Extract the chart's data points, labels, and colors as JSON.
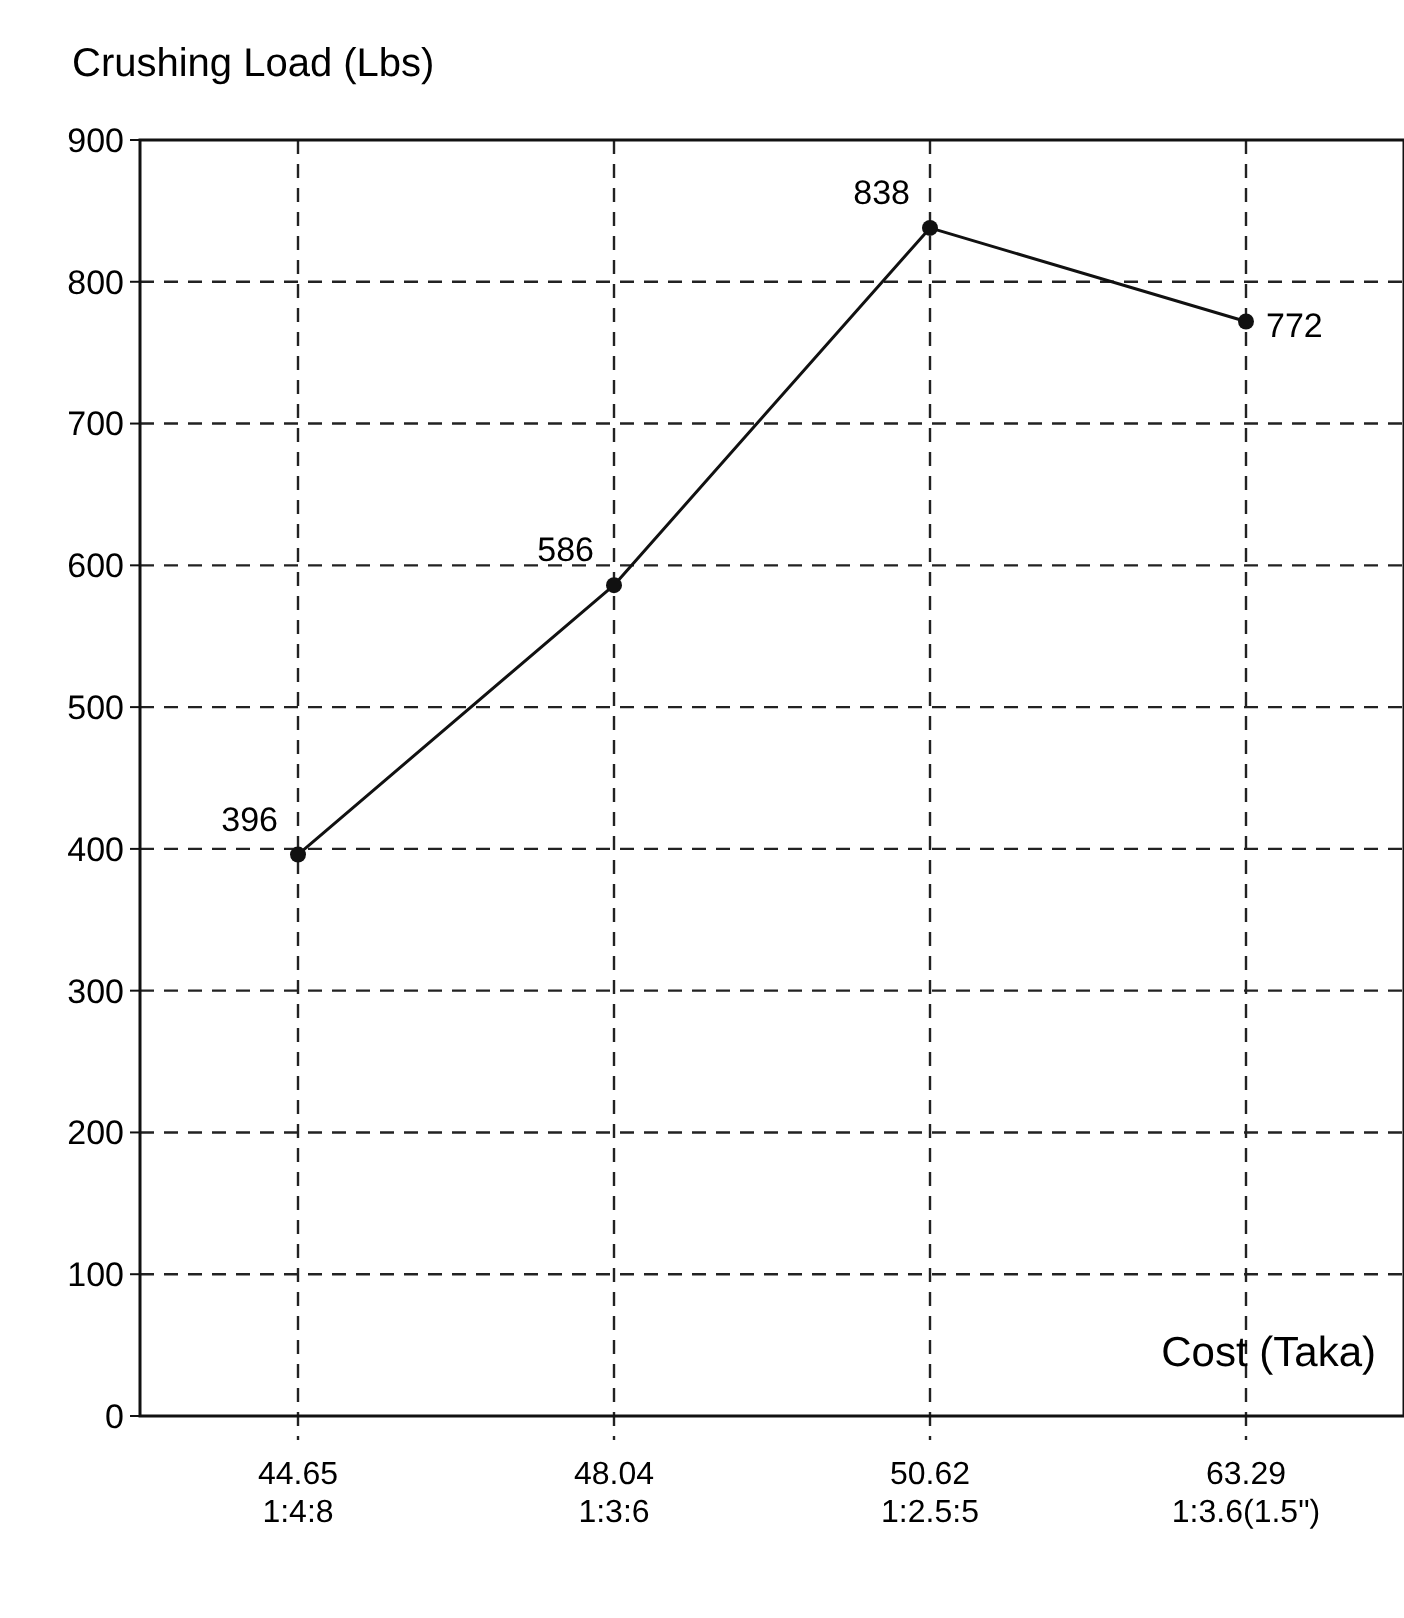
{
  "chart_data": {
    "type": "line",
    "ylabel": "Crushing Load (Lbs)",
    "xlabel": "Cost (Taka)",
    "categories": [
      "44.65\n1:4:8",
      "48.04\n1:3:6",
      "50.62\n1:2.5:5",
      "63.29\n1:3.6(1.5\")"
    ],
    "values": [
      396,
      586,
      838,
      772
    ],
    "color": "#111111",
    "ylim": [
      0,
      900
    ],
    "yticks": [
      0,
      100,
      200,
      300,
      400,
      500,
      600,
      700,
      800,
      900
    ],
    "grid": true,
    "marker": "circle",
    "line_style": "solid",
    "data_labels": true
  }
}
